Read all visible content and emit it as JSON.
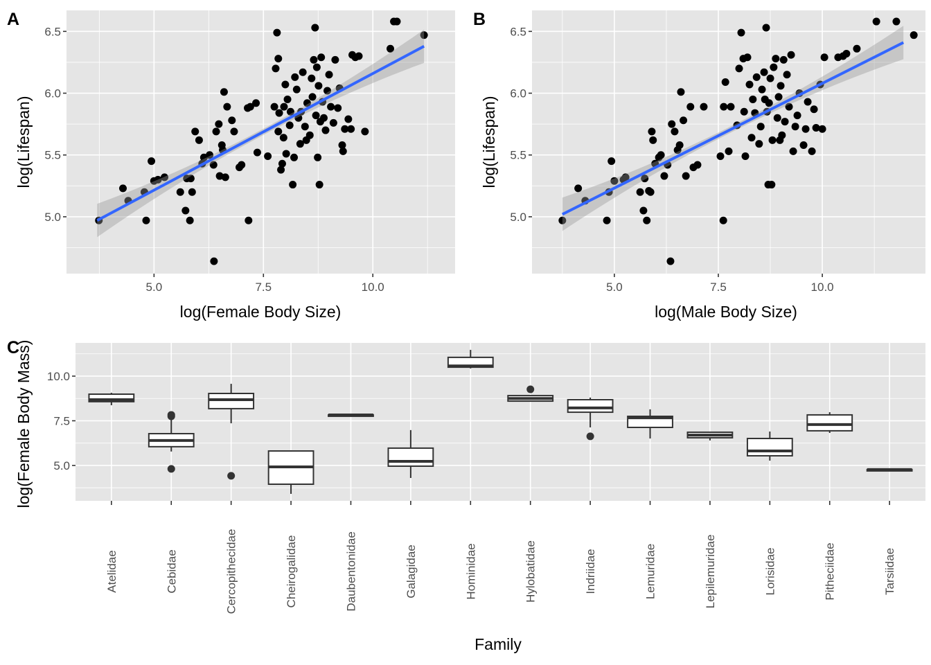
{
  "figure": {
    "panel_tags": [
      "A",
      "B",
      "C"
    ]
  },
  "chart_data": [
    {
      "id": "A",
      "type": "scatter",
      "title": "",
      "xlabel": "log(Female Body Size)",
      "ylabel": "log(Lifespan)",
      "xlim": [
        3.0,
        11.88
      ],
      "ylim": [
        4.54,
        6.67
      ],
      "xticks": [
        5.0,
        7.5,
        10.0
      ],
      "xtick_labels": [
        "5.0",
        "7.5",
        "10.0"
      ],
      "yticks": [
        5.0,
        5.5,
        6.0,
        6.5
      ],
      "ytick_labels": [
        "5.0",
        "5.5",
        "6.0",
        "6.5"
      ],
      "grid": true,
      "fit": {
        "method": "lm",
        "color": "#3366ff",
        "x": [
          3.7,
          11.17
        ],
        "y": [
          4.97,
          6.38
        ],
        "se_band": true
      },
      "points": [
        [
          3.74,
          4.97
        ],
        [
          4.29,
          5.23
        ],
        [
          4.41,
          5.13
        ],
        [
          4.78,
          5.2
        ],
        [
          4.82,
          4.97
        ],
        [
          4.94,
          5.45
        ],
        [
          5.0,
          5.29
        ],
        [
          5.09,
          5.3
        ],
        [
          5.24,
          5.32
        ],
        [
          5.6,
          5.2
        ],
        [
          5.72,
          5.05
        ],
        [
          5.75,
          5.31
        ],
        [
          5.82,
          4.97
        ],
        [
          5.84,
          5.31
        ],
        [
          5.87,
          5.2
        ],
        [
          5.94,
          5.69
        ],
        [
          6.03,
          5.62
        ],
        [
          6.1,
          5.43
        ],
        [
          6.14,
          5.48
        ],
        [
          6.27,
          5.5
        ],
        [
          6.36,
          5.42
        ],
        [
          6.37,
          4.64
        ],
        [
          6.42,
          5.69
        ],
        [
          6.48,
          5.75
        ],
        [
          6.5,
          5.33
        ],
        [
          6.55,
          5.58
        ],
        [
          6.57,
          5.54
        ],
        [
          6.6,
          6.01
        ],
        [
          6.63,
          5.32
        ],
        [
          6.67,
          5.89
        ],
        [
          6.78,
          5.78
        ],
        [
          6.83,
          5.69
        ],
        [
          6.95,
          5.4
        ],
        [
          7.0,
          5.42
        ],
        [
          7.14,
          5.88
        ],
        [
          7.16,
          4.97
        ],
        [
          7.2,
          5.89
        ],
        [
          7.33,
          5.92
        ],
        [
          7.36,
          5.52
        ],
        [
          7.6,
          5.49
        ],
        [
          7.75,
          5.89
        ],
        [
          7.78,
          6.2
        ],
        [
          7.81,
          6.49
        ],
        [
          7.84,
          5.69
        ],
        [
          7.84,
          6.28
        ],
        [
          7.86,
          5.84
        ],
        [
          7.9,
          5.38
        ],
        [
          7.93,
          5.43
        ],
        [
          7.96,
          5.64
        ],
        [
          7.97,
          5.89
        ],
        [
          8.0,
          6.07
        ],
        [
          8.02,
          5.51
        ],
        [
          8.05,
          5.95
        ],
        [
          8.1,
          5.74
        ],
        [
          8.12,
          5.85
        ],
        [
          8.17,
          5.26
        ],
        [
          8.2,
          5.48
        ],
        [
          8.22,
          6.13
        ],
        [
          8.26,
          6.03
        ],
        [
          8.3,
          5.8
        ],
        [
          8.34,
          5.59
        ],
        [
          8.36,
          5.85
        ],
        [
          8.4,
          6.17
        ],
        [
          8.45,
          5.73
        ],
        [
          8.48,
          5.62
        ],
        [
          8.5,
          5.92
        ],
        [
          8.56,
          5.66
        ],
        [
          8.6,
          6.12
        ],
        [
          8.62,
          5.97
        ],
        [
          8.65,
          6.27
        ],
        [
          8.68,
          6.53
        ],
        [
          8.7,
          5.82
        ],
        [
          8.72,
          6.21
        ],
        [
          8.74,
          5.48
        ],
        [
          8.76,
          6.06
        ],
        [
          8.78,
          5.26
        ],
        [
          8.8,
          5.77
        ],
        [
          8.82,
          6.29
        ],
        [
          8.85,
          5.93
        ],
        [
          8.88,
          5.8
        ],
        [
          8.92,
          5.7
        ],
        [
          8.96,
          6.02
        ],
        [
          9.0,
          6.15
        ],
        [
          9.04,
          5.89
        ],
        [
          9.1,
          5.76
        ],
        [
          9.14,
          6.27
        ],
        [
          9.2,
          5.88
        ],
        [
          9.24,
          6.04
        ],
        [
          9.3,
          5.58
        ],
        [
          9.32,
          5.53
        ],
        [
          9.36,
          5.71
        ],
        [
          9.44,
          5.79
        ],
        [
          9.5,
          5.71
        ],
        [
          9.53,
          6.31
        ],
        [
          9.6,
          6.29
        ],
        [
          9.68,
          6.3
        ],
        [
          9.82,
          5.69
        ],
        [
          10.4,
          6.36
        ],
        [
          10.48,
          6.58
        ],
        [
          10.55,
          6.58
        ],
        [
          11.17,
          6.47
        ]
      ]
    },
    {
      "id": "B",
      "type": "scatter",
      "title": "",
      "xlabel": "log(Male Body Size)",
      "ylabel": "log(Lifespan)",
      "xlim": [
        3.02,
        12.48
      ],
      "ylim": [
        4.54,
        6.67
      ],
      "xticks": [
        5.0,
        7.5,
        10.0
      ],
      "xtick_labels": [
        "5.0",
        "7.5",
        "10.0"
      ],
      "yticks": [
        5.0,
        5.5,
        6.0,
        6.5
      ],
      "ytick_labels": [
        "5.0",
        "5.5",
        "6.0",
        "6.5"
      ],
      "grid": true,
      "fit": {
        "method": "lm",
        "color": "#3366ff",
        "x": [
          3.75,
          11.95
        ],
        "y": [
          5.02,
          6.41
        ],
        "se_band": true
      },
      "points": [
        [
          3.75,
          4.97
        ],
        [
          4.13,
          5.23
        ],
        [
          4.3,
          5.13
        ],
        [
          4.82,
          4.97
        ],
        [
          4.87,
          5.2
        ],
        [
          4.93,
          5.45
        ],
        [
          5.0,
          5.29
        ],
        [
          5.22,
          5.3
        ],
        [
          5.27,
          5.32
        ],
        [
          5.62,
          5.2
        ],
        [
          5.7,
          5.05
        ],
        [
          5.73,
          5.31
        ],
        [
          5.78,
          4.97
        ],
        [
          5.83,
          5.21
        ],
        [
          5.87,
          5.2
        ],
        [
          5.9,
          5.69
        ],
        [
          5.93,
          5.62
        ],
        [
          5.98,
          5.43
        ],
        [
          6.07,
          5.48
        ],
        [
          6.12,
          5.5
        ],
        [
          6.2,
          5.33
        ],
        [
          6.28,
          5.42
        ],
        [
          6.35,
          4.64
        ],
        [
          6.38,
          5.75
        ],
        [
          6.45,
          5.69
        ],
        [
          6.52,
          5.54
        ],
        [
          6.57,
          5.58
        ],
        [
          6.6,
          6.01
        ],
        [
          6.66,
          5.78
        ],
        [
          6.72,
          5.33
        ],
        [
          6.83,
          5.89
        ],
        [
          6.9,
          5.4
        ],
        [
          7.0,
          5.42
        ],
        [
          7.15,
          5.89
        ],
        [
          7.55,
          5.49
        ],
        [
          7.62,
          4.97
        ],
        [
          7.63,
          5.89
        ],
        [
          7.67,
          6.09
        ],
        [
          7.75,
          5.53
        ],
        [
          7.8,
          5.89
        ],
        [
          7.95,
          5.74
        ],
        [
          8.0,
          6.2
        ],
        [
          8.05,
          6.49
        ],
        [
          8.1,
          6.28
        ],
        [
          8.12,
          5.85
        ],
        [
          8.15,
          5.49
        ],
        [
          8.2,
          6.29
        ],
        [
          8.25,
          6.07
        ],
        [
          8.3,
          5.64
        ],
        [
          8.33,
          5.95
        ],
        [
          8.38,
          5.84
        ],
        [
          8.42,
          6.13
        ],
        [
          8.48,
          5.59
        ],
        [
          8.52,
          5.73
        ],
        [
          8.55,
          6.03
        ],
        [
          8.6,
          6.17
        ],
        [
          8.62,
          5.95
        ],
        [
          8.65,
          6.53
        ],
        [
          8.67,
          5.85
        ],
        [
          8.7,
          5.26
        ],
        [
          8.72,
          5.92
        ],
        [
          8.75,
          6.12
        ],
        [
          8.78,
          5.26
        ],
        [
          8.8,
          5.62
        ],
        [
          8.83,
          6.21
        ],
        [
          8.88,
          6.28
        ],
        [
          8.92,
          5.8
        ],
        [
          8.95,
          5.97
        ],
        [
          8.98,
          5.62
        ],
        [
          9.0,
          6.06
        ],
        [
          9.03,
          5.66
        ],
        [
          9.07,
          6.27
        ],
        [
          9.1,
          5.77
        ],
        [
          9.15,
          6.15
        ],
        [
          9.2,
          5.89
        ],
        [
          9.25,
          6.31
        ],
        [
          9.3,
          5.53
        ],
        [
          9.35,
          5.73
        ],
        [
          9.4,
          5.82
        ],
        [
          9.45,
          6.0
        ],
        [
          9.55,
          5.58
        ],
        [
          9.6,
          5.71
        ],
        [
          9.65,
          5.93
        ],
        [
          9.75,
          5.53
        ],
        [
          9.8,
          5.87
        ],
        [
          9.85,
          5.72
        ],
        [
          9.95,
          6.07
        ],
        [
          10.0,
          5.71
        ],
        [
          10.05,
          6.29
        ],
        [
          10.38,
          6.29
        ],
        [
          10.5,
          6.3
        ],
        [
          10.58,
          6.32
        ],
        [
          10.83,
          6.36
        ],
        [
          11.3,
          6.58
        ],
        [
          11.78,
          6.58
        ],
        [
          12.2,
          6.47
        ]
      ]
    },
    {
      "id": "C",
      "type": "box",
      "title": "",
      "xlabel": "Family",
      "ylabel": "log(Female Body Mass)",
      "ylim": [
        3.02,
        11.86
      ],
      "yticks": [
        5.0,
        7.5,
        10.0
      ],
      "ytick_labels": [
        "5.0",
        "7.5",
        "10.0"
      ],
      "grid": true,
      "categories": [
        "Atelidae",
        "Cebidae",
        "Cercopithecidae",
        "Cheirogalidae",
        "Daubentonidae",
        "Galagidae",
        "Hominidae",
        "Hylobatidae",
        "Indriidae",
        "Lemuridae",
        "Lepilemuridae",
        "Lorisidae",
        "Pitheciidae",
        "Tarsiidae"
      ],
      "boxes": [
        {
          "lower_whisker": 8.37,
          "q1": 8.57,
          "median": 8.68,
          "q3": 8.99,
          "upper_whisker": 9.07,
          "outliers": []
        },
        {
          "lower_whisker": 5.78,
          "q1": 6.05,
          "median": 6.4,
          "q3": 6.78,
          "upper_whisker": 7.75,
          "outliers": [
            7.83,
            7.75,
            4.81
          ]
        },
        {
          "lower_whisker": 7.36,
          "q1": 8.18,
          "median": 8.68,
          "q3": 9.03,
          "upper_whisker": 9.57,
          "outliers": [
            4.42
          ]
        },
        {
          "lower_whisker": 3.41,
          "q1": 3.95,
          "median": 4.92,
          "q3": 5.81,
          "upper_whisker": 5.85,
          "outliers": []
        },
        {
          "lower_whisker": 7.83,
          "q1": 7.83,
          "median": 7.83,
          "q3": 7.83,
          "upper_whisker": 7.83,
          "outliers": []
        },
        {
          "lower_whisker": 4.3,
          "q1": 4.96,
          "median": 5.23,
          "q3": 5.97,
          "upper_whisker": 6.98,
          "outliers": []
        },
        {
          "lower_whisker": 10.43,
          "q1": 10.5,
          "median": 10.57,
          "q3": 11.05,
          "upper_whisker": 11.47,
          "outliers": []
        },
        {
          "lower_whisker": 8.6,
          "q1": 8.6,
          "median": 8.75,
          "q3": 8.91,
          "upper_whisker": 8.91,
          "outliers": [
            9.26
          ]
        },
        {
          "lower_whisker": 7.13,
          "q1": 7.98,
          "median": 8.22,
          "q3": 8.68,
          "upper_whisker": 8.8,
          "outliers": [
            6.63
          ]
        },
        {
          "lower_whisker": 6.51,
          "q1": 7.13,
          "median": 7.67,
          "q3": 7.75,
          "upper_whisker": 8.14,
          "outliers": []
        },
        {
          "lower_whisker": 6.4,
          "q1": 6.55,
          "median": 6.7,
          "q3": 6.86,
          "upper_whisker": 6.86,
          "outliers": []
        },
        {
          "lower_whisker": 5.27,
          "q1": 5.54,
          "median": 5.81,
          "q3": 6.51,
          "upper_whisker": 6.9,
          "outliers": []
        },
        {
          "lower_whisker": 6.82,
          "q1": 6.94,
          "median": 7.29,
          "q3": 7.83,
          "upper_whisker": 7.98,
          "outliers": []
        },
        {
          "lower_whisker": 4.77,
          "q1": 4.77,
          "median": 4.77,
          "q3": 4.77,
          "upper_whisker": 4.77,
          "outliers": []
        }
      ]
    }
  ]
}
